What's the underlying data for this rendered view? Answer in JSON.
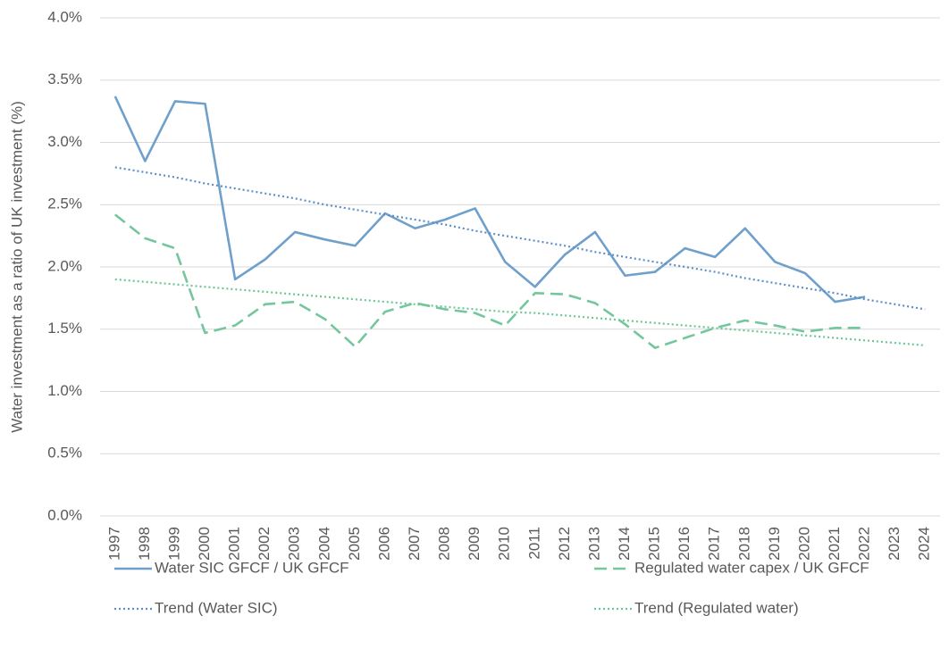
{
  "chart_data": {
    "type": "line",
    "ylabel": "Water investment as a ratio of UK investment (%)",
    "categories": [
      "1997",
      "1998",
      "1999",
      "2000",
      "2001",
      "2002",
      "2003",
      "2004",
      "2005",
      "2006",
      "2007",
      "2008",
      "2009",
      "2010",
      "2011",
      "2012",
      "2013",
      "2014",
      "2015",
      "2016",
      "2017",
      "2018",
      "2019",
      "2020",
      "2021",
      "2022",
      "2023",
      "2024"
    ],
    "series": [
      {
        "name": "Water  SIC GFCF / UK GFCF",
        "color": "#6f9fcb",
        "style": "solid",
        "values": [
          3.37,
          2.85,
          3.33,
          3.31,
          1.9,
          2.06,
          2.28,
          2.22,
          2.17,
          2.43,
          2.31,
          2.38,
          2.47,
          2.04,
          1.84,
          2.1,
          2.28,
          1.93,
          1.96,
          2.15,
          2.08,
          2.31,
          2.04,
          1.95,
          1.72,
          1.76,
          null,
          null
        ]
      },
      {
        "name": "Regulated water capex / UK GFCF",
        "color": "#74c69d",
        "style": "dashed",
        "values": [
          2.42,
          2.23,
          2.15,
          1.47,
          1.53,
          1.7,
          1.72,
          1.58,
          1.36,
          1.64,
          1.71,
          1.66,
          1.63,
          1.53,
          1.79,
          1.78,
          1.71,
          1.54,
          1.35,
          1.43,
          1.51,
          1.57,
          1.53,
          1.48,
          1.51,
          1.51,
          null,
          null
        ]
      },
      {
        "name": "Trend (Water SIC)",
        "color": "#5b8fc9",
        "style": "dotted",
        "values": [
          2.8,
          2.76,
          2.72,
          2.67,
          2.63,
          2.59,
          2.55,
          2.5,
          2.46,
          2.42,
          2.38,
          2.34,
          2.29,
          2.25,
          2.21,
          2.17,
          2.12,
          2.08,
          2.04,
          2.0,
          1.96,
          1.91,
          1.87,
          1.83,
          1.79,
          1.74,
          1.7,
          1.66
        ]
      },
      {
        "name": "Trend (Regulated water)",
        "color": "#6cc794",
        "style": "dotted",
        "values": [
          1.9,
          1.88,
          1.86,
          1.84,
          1.82,
          1.8,
          1.78,
          1.76,
          1.74,
          1.72,
          1.7,
          1.68,
          1.66,
          1.64,
          1.63,
          1.61,
          1.59,
          1.57,
          1.55,
          1.53,
          1.51,
          1.49,
          1.47,
          1.45,
          1.43,
          1.41,
          1.39,
          1.37
        ]
      }
    ],
    "ylim": [
      0,
      4
    ],
    "yticks": [
      {
        "value": 0,
        "label": "0.0%"
      },
      {
        "value": 0.5,
        "label": "0.5%"
      },
      {
        "value": 1,
        "label": "1.0%"
      },
      {
        "value": 1.5,
        "label": "1.5%"
      },
      {
        "value": 2,
        "label": "2.0%"
      },
      {
        "value": 2.5,
        "label": "2.5%"
      },
      {
        "value": 3,
        "label": "3.0%"
      },
      {
        "value": 3.5,
        "label": "3.5%"
      },
      {
        "value": 4,
        "label": "4.0%"
      }
    ],
    "grid": true
  }
}
